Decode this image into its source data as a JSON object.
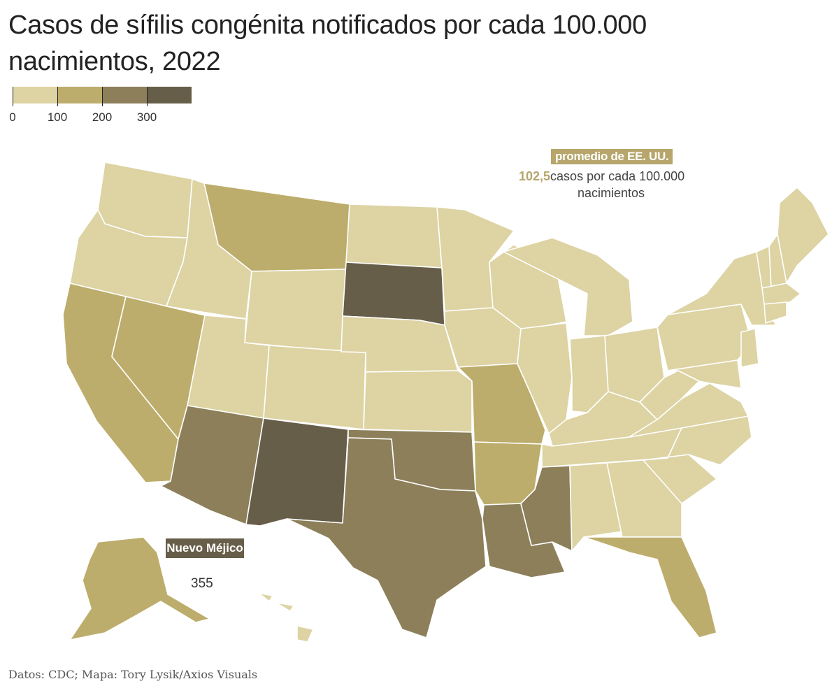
{
  "title": "Casos de sífilis congénita notificados por cada 100.000 nacimientos, 2022",
  "legend": {
    "ticks": [
      "0",
      "100",
      "200",
      "300"
    ],
    "bins": [
      {
        "min": 0,
        "max": 100,
        "color": "#ddd3a3"
      },
      {
        "min": 100,
        "max": 200,
        "color": "#bdad6c"
      },
      {
        "min": 200,
        "max": 300,
        "color": "#8c7f5a"
      },
      {
        "min": 300,
        "max": 400,
        "color": "#675e4a"
      }
    ]
  },
  "us_average": {
    "label": "promedio de EE. UU.",
    "value": "102,5",
    "unit_line1": "casos por cada 100.000",
    "unit_line2": "nacimientos"
  },
  "callout": {
    "state": "Nuevo Méjico",
    "value": "355"
  },
  "source": "Datos: CDC; Mapa: Tory Lysik/Axios Visuals",
  "colors": {
    "light": "#ddd3a3",
    "medium": "#bdad6c",
    "dark": "#8c7f5a",
    "darkest": "#675e4a",
    "border": "#ffffff"
  },
  "chart_data": {
    "type": "choropleth",
    "bins": [
      "0-100",
      "100-200",
      "200-300",
      "300+"
    ],
    "states_by_bin": {
      "300+": [
        "South Dakota",
        "New Mexico"
      ],
      "200-300": [
        "Arizona",
        "Texas",
        "Oklahoma",
        "Louisiana",
        "Mississippi"
      ],
      "100-200": [
        "Montana",
        "Nevada",
        "California",
        "Missouri",
        "Arkansas",
        "Florida",
        "Alaska"
      ],
      "0-100": [
        "Washington",
        "Oregon",
        "Idaho",
        "Wyoming",
        "Utah",
        "Colorado",
        "North Dakota",
        "Nebraska",
        "Kansas",
        "Minnesota",
        "Iowa",
        "Wisconsin",
        "Illinois",
        "Michigan",
        "Indiana",
        "Ohio",
        "Kentucky",
        "Tennessee",
        "Alabama",
        "Georgia",
        "South Carolina",
        "North Carolina",
        "Virginia",
        "West Virginia",
        "Pennsylvania",
        "New York",
        "Vermont",
        "New Hampshire",
        "Maine",
        "Massachusetts",
        "Connecticut",
        "Rhode Island",
        "New Jersey",
        "Delaware",
        "Maryland",
        "Hawaii"
      ]
    },
    "highlight": {
      "state": "Nuevo Méjico",
      "value": 355
    },
    "us_average": 102.5
  }
}
